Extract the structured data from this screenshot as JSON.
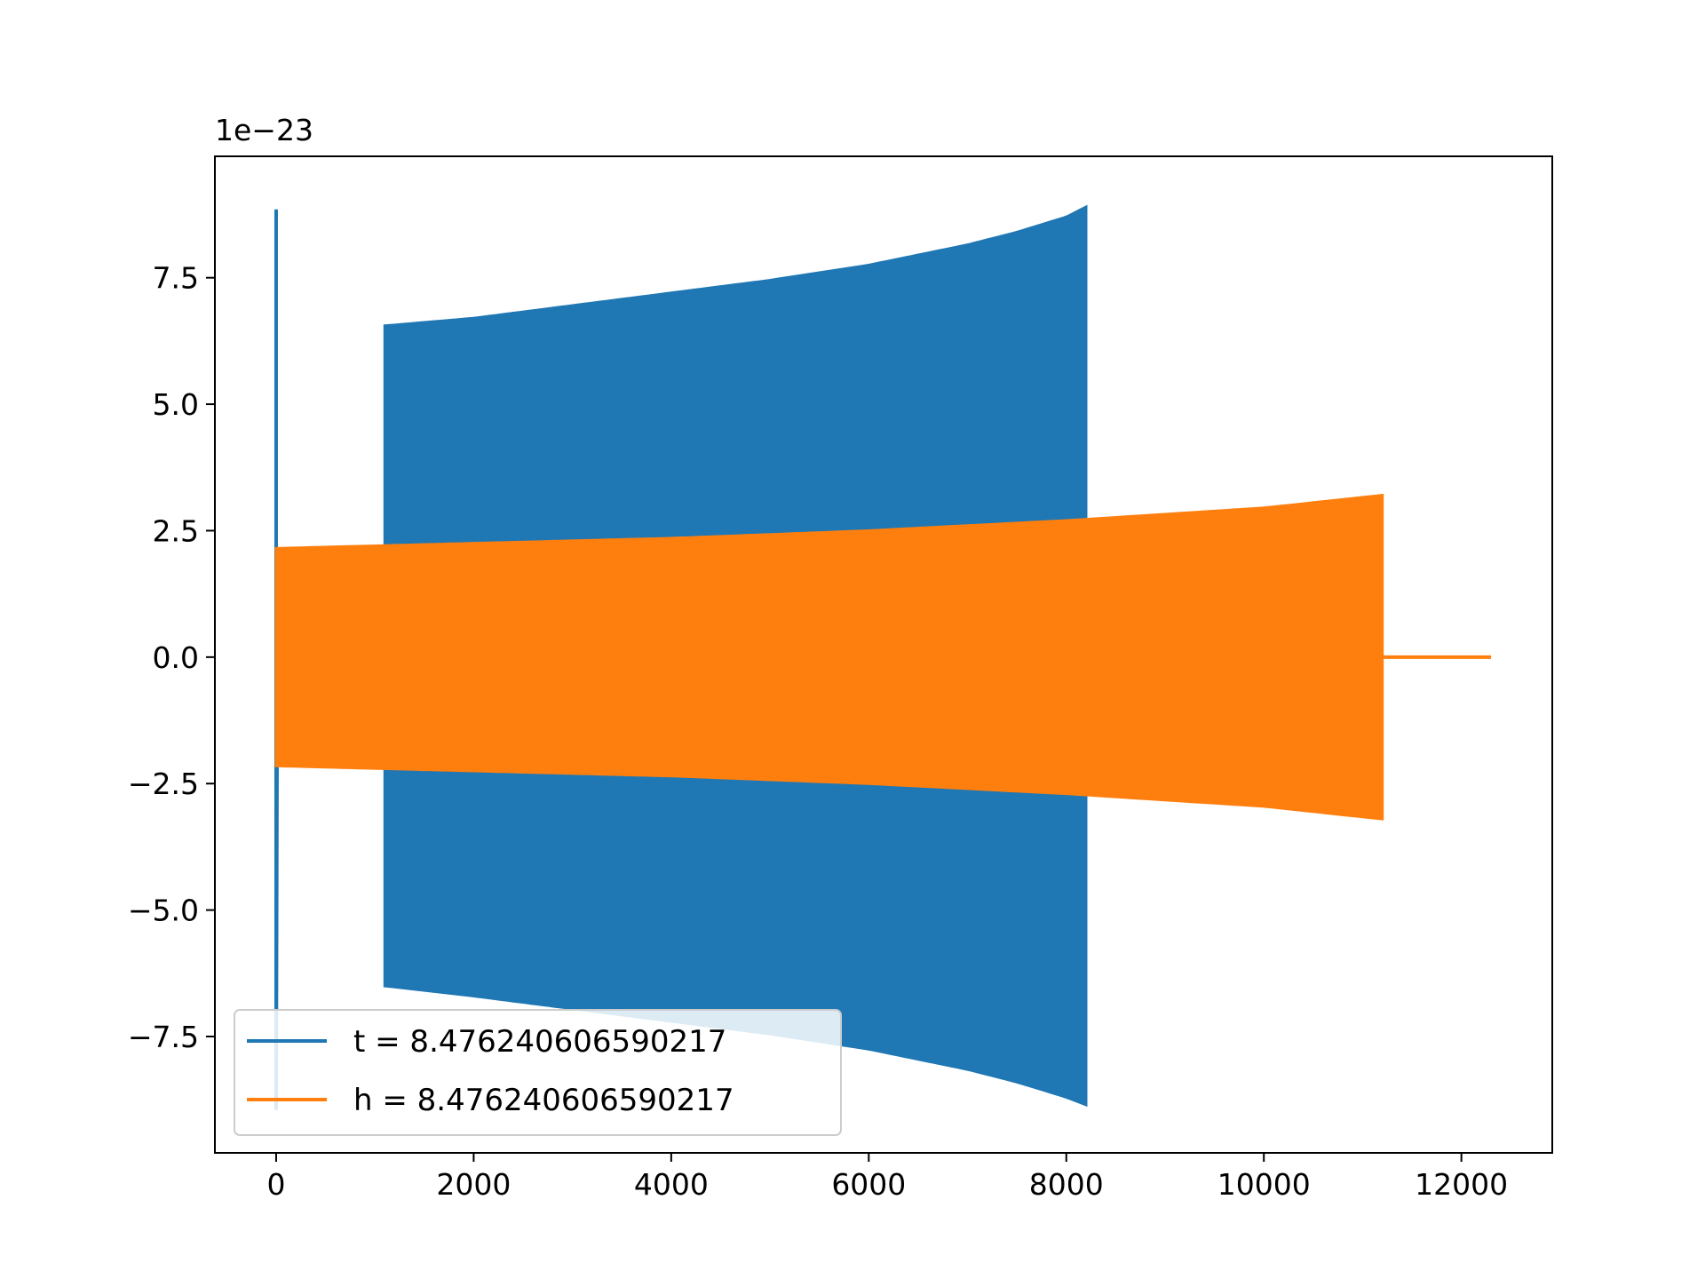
{
  "chart_data": {
    "type": "line",
    "title": "",
    "xlabel": "",
    "ylabel": "",
    "y_offset_text": "1e−23",
    "y_scale_factor": 1e-23,
    "xlim": [
      -620,
      12920
    ],
    "ylim": [
      -9.8,
      9.9
    ],
    "xticks": [
      0,
      2000,
      4000,
      6000,
      8000,
      10000,
      12000
    ],
    "xtick_labels": [
      "0",
      "2000",
      "4000",
      "6000",
      "8000",
      "10000",
      "12000"
    ],
    "yticks": [
      -7.5,
      -5.0,
      -2.5,
      0.0,
      2.5,
      5.0,
      7.5
    ],
    "ytick_labels": [
      "−7.5",
      "−5.0",
      "−2.5",
      "0.0",
      "2.5",
      "5.0",
      "7.5"
    ],
    "grid": false,
    "legend_position": "lower-left",
    "series": [
      {
        "name": "t = 8.476240606590217",
        "color": "#1f77b4",
        "envelope_x": [
          0,
          1100,
          2000,
          3000,
          4000,
          5000,
          6000,
          7000,
          7500,
          8000,
          8200
        ],
        "envelope_upper": [
          8.85,
          6.55,
          6.7,
          6.95,
          7.2,
          7.45,
          7.75,
          8.15,
          8.4,
          8.7,
          8.9
        ],
        "envelope_lower": [
          -8.95,
          -6.5,
          -6.7,
          -6.95,
          -7.2,
          -7.45,
          -7.75,
          -8.15,
          -8.4,
          -8.7,
          -8.85
        ]
      },
      {
        "name": "h = 8.476240606590217",
        "color": "#ff7f0e",
        "envelope_x": [
          0,
          1000,
          2000,
          4000,
          6000,
          8000,
          10000,
          11200
        ],
        "envelope_upper": [
          2.15,
          2.2,
          2.25,
          2.35,
          2.5,
          2.7,
          2.95,
          3.2
        ],
        "envelope_lower": [
          -2.15,
          -2.2,
          -2.25,
          -2.35,
          -2.5,
          -2.7,
          -2.95,
          -3.2
        ],
        "tail_x": [
          11200,
          12300
        ],
        "tail_y": [
          0,
          0
        ]
      }
    ]
  }
}
